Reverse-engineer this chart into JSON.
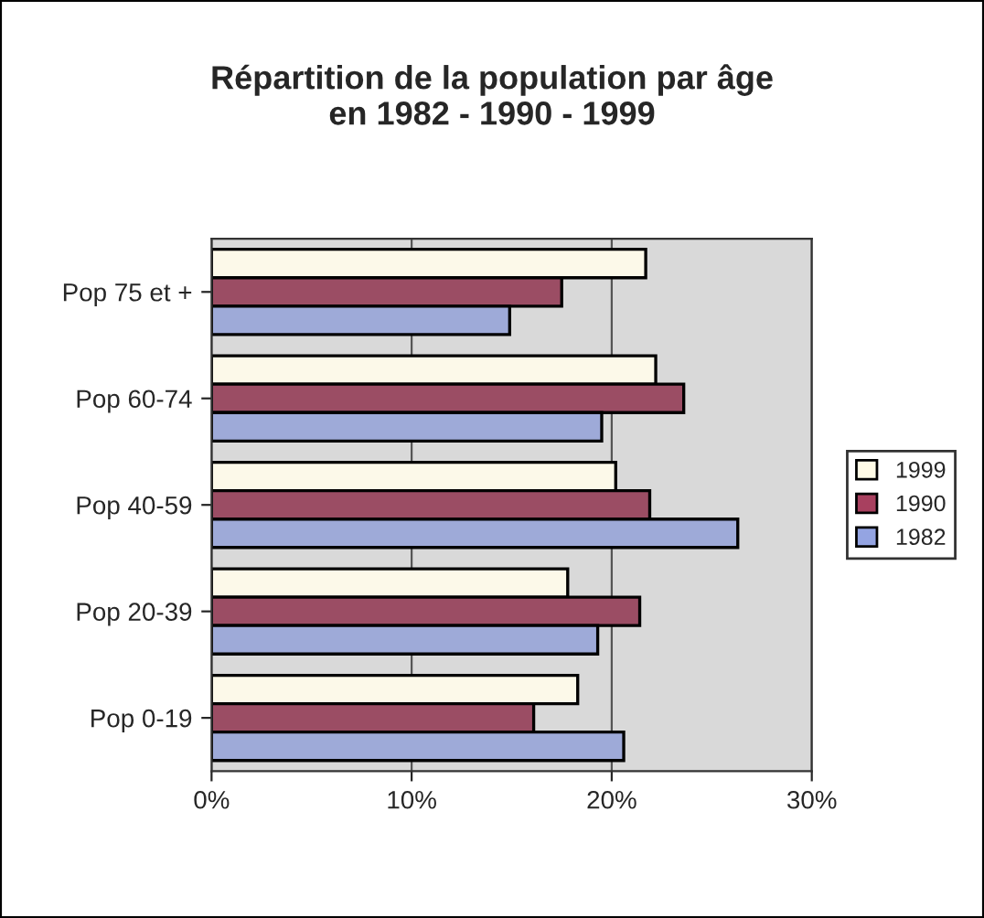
{
  "chart_data": {
    "type": "bar",
    "orientation": "horizontal",
    "title": "Répartition de la population par âge\nen 1982 - 1990 - 1999",
    "categories": [
      "Pop 75 et +",
      "Pop 60-74",
      "Pop 40-59",
      "Pop 20-39",
      "Pop 0-19"
    ],
    "series": [
      {
        "name": "1999",
        "color": "#fffbe6",
        "values": [
          21.7,
          22.2,
          20.2,
          17.8,
          18.3
        ]
      },
      {
        "name": "1990",
        "color": "#a8405f",
        "values": [
          17.5,
          23.6,
          21.9,
          21.4,
          16.1
        ]
      },
      {
        "name": "1982",
        "color": "#94a4e2",
        "values": [
          14.9,
          19.5,
          26.3,
          19.3,
          20.6
        ]
      }
    ],
    "xlim": [
      0,
      30
    ],
    "xticks": [
      {
        "value": 0,
        "label": "0%"
      },
      {
        "value": 10,
        "label": "10%"
      },
      {
        "value": 20,
        "label": "20%"
      },
      {
        "value": 30,
        "label": "30%"
      }
    ],
    "grid": "x",
    "legend": "right"
  }
}
